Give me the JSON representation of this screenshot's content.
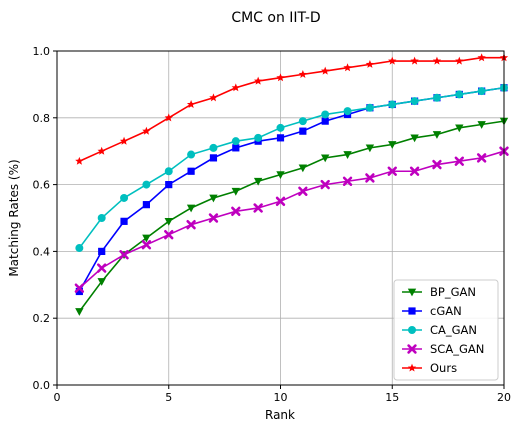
{
  "chart_data": {
    "type": "line",
    "title": "CMC on IIT-D",
    "xlabel": "Rank",
    "ylabel": "Matching Rates (%)",
    "xlim": [
      0,
      20
    ],
    "ylim": [
      0.0,
      1.0
    ],
    "xticks": [
      0,
      5,
      10,
      15,
      20
    ],
    "yticks": [
      0.0,
      0.2,
      0.4,
      0.6,
      0.8,
      1.0
    ],
    "ytick_labels": [
      "0.0",
      "0.2",
      "0.4",
      "0.6",
      "0.8",
      "1.0"
    ],
    "grid": true,
    "legend_position": "bottom-right",
    "x": [
      1,
      2,
      3,
      4,
      5,
      6,
      7,
      8,
      9,
      10,
      11,
      12,
      13,
      14,
      15,
      16,
      17,
      18,
      19,
      20
    ],
    "series": [
      {
        "name": "BP_GAN",
        "color": "#008000",
        "marker": "triangle-down",
        "values": [
          0.22,
          0.31,
          0.39,
          0.44,
          0.49,
          0.53,
          0.56,
          0.58,
          0.61,
          0.63,
          0.65,
          0.68,
          0.69,
          0.71,
          0.72,
          0.74,
          0.75,
          0.77,
          0.78,
          0.79
        ]
      },
      {
        "name": "cGAN",
        "color": "#0000ff",
        "marker": "square",
        "values": [
          0.28,
          0.4,
          0.49,
          0.54,
          0.6,
          0.64,
          0.68,
          0.71,
          0.73,
          0.74,
          0.76,
          0.79,
          0.81,
          0.83,
          0.84,
          0.85,
          0.86,
          0.87,
          0.88,
          0.89
        ]
      },
      {
        "name": "CA_GAN",
        "color": "#00bfbf",
        "marker": "circle",
        "values": [
          0.41,
          0.5,
          0.56,
          0.6,
          0.64,
          0.69,
          0.71,
          0.73,
          0.74,
          0.77,
          0.79,
          0.81,
          0.82,
          0.83,
          0.84,
          0.85,
          0.86,
          0.87,
          0.88,
          0.89
        ]
      },
      {
        "name": "SCA_GAN",
        "color": "#bf00bf",
        "marker": "x",
        "values": [
          0.29,
          0.35,
          0.39,
          0.42,
          0.45,
          0.48,
          0.5,
          0.52,
          0.53,
          0.55,
          0.58,
          0.6,
          0.61,
          0.62,
          0.64,
          0.64,
          0.66,
          0.67,
          0.68,
          0.7
        ]
      },
      {
        "name": "Ours",
        "color": "#ff0000",
        "marker": "star",
        "values": [
          0.67,
          0.7,
          0.73,
          0.76,
          0.8,
          0.84,
          0.86,
          0.89,
          0.91,
          0.92,
          0.93,
          0.94,
          0.95,
          0.96,
          0.97,
          0.97,
          0.97,
          0.97,
          0.98,
          0.98
        ]
      }
    ]
  }
}
